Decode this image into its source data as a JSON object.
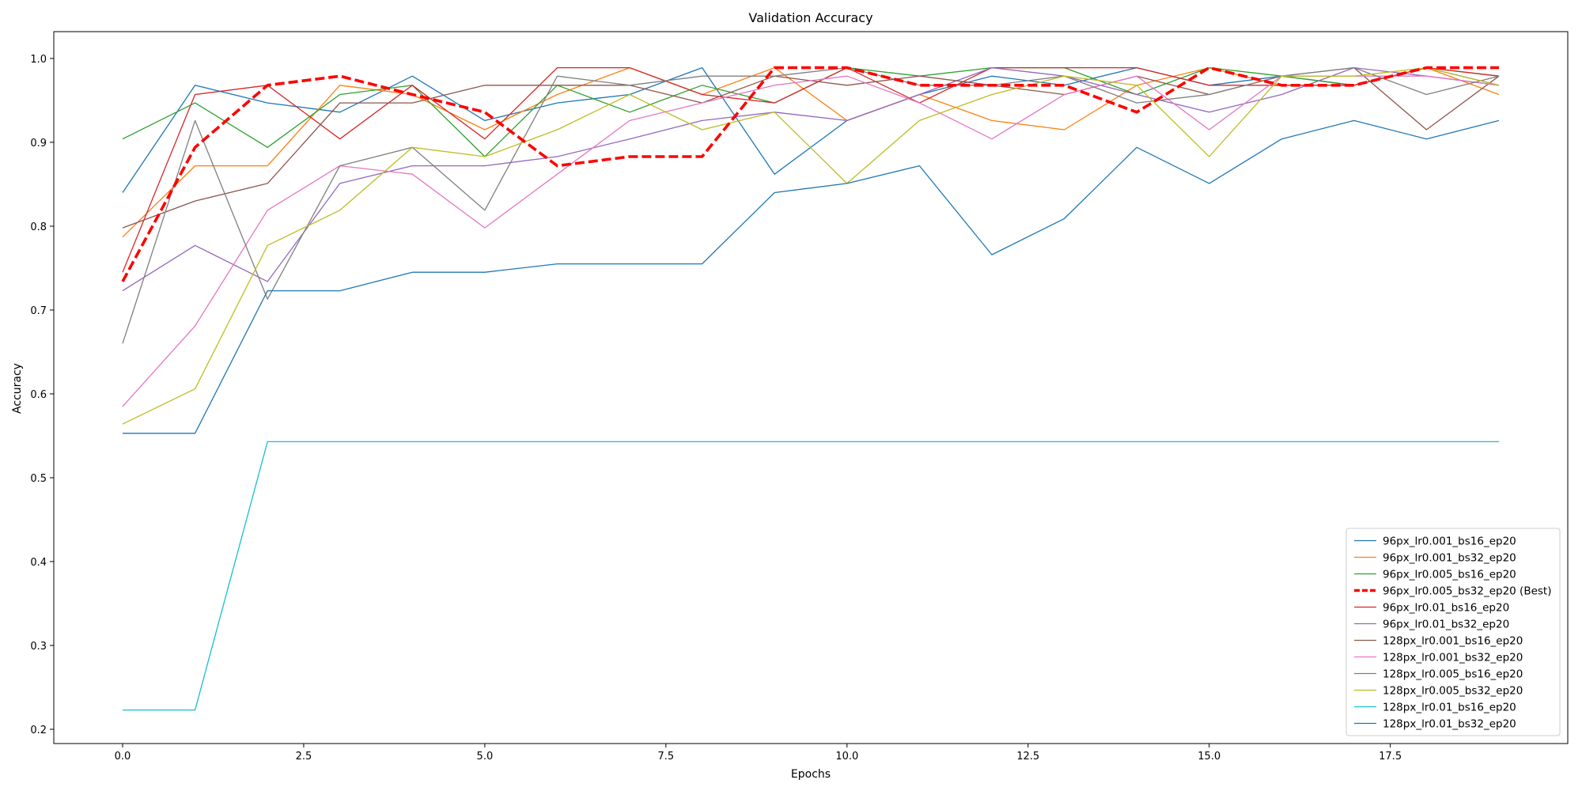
{
  "chart_data": {
    "type": "line",
    "title": "Validation Accuracy",
    "xlabel": "Epochs",
    "ylabel": "Accuracy",
    "xlim": [
      -0.95,
      19.95
    ],
    "ylim": [
      0.183,
      1.032
    ],
    "x_ticks": [
      0.0,
      2.5,
      5.0,
      7.5,
      10.0,
      12.5,
      15.0,
      17.5
    ],
    "x_tick_labels": [
      "0.0",
      "2.5",
      "5.0",
      "7.5",
      "10.0",
      "12.5",
      "15.0",
      "17.5"
    ],
    "y_ticks": [
      0.2,
      0.3,
      0.4,
      0.5,
      0.6,
      0.7,
      0.8,
      0.9,
      1.0
    ],
    "y_tick_labels": [
      "0.2",
      "0.3",
      "0.4",
      "0.5",
      "0.6",
      "0.7",
      "0.8",
      "0.9",
      "1.0"
    ],
    "grid": false,
    "legend_position": "lower-right",
    "x": [
      0,
      1,
      2,
      3,
      4,
      5,
      6,
      7,
      8,
      9,
      10,
      11,
      12,
      13,
      14,
      15,
      16,
      17,
      18,
      19
    ],
    "series": [
      {
        "name": "96px_lr0.001_bs16_ep20",
        "color": "#1f77b4",
        "style": "solid",
        "values": [
          0.84,
          0.968,
          0.947,
          0.936,
          0.979,
          0.926,
          0.947,
          0.957,
          0.989,
          0.862,
          0.926,
          0.957,
          0.979,
          0.968,
          0.989,
          0.968,
          0.979,
          0.968,
          0.989,
          0.968
        ]
      },
      {
        "name": "96px_lr0.001_bs32_ep20",
        "color": "#ff7f0e",
        "style": "solid",
        "values": [
          0.787,
          0.872,
          0.872,
          0.968,
          0.957,
          0.915,
          0.957,
          0.989,
          0.957,
          0.989,
          0.926,
          0.957,
          0.926,
          0.915,
          0.968,
          0.989,
          0.968,
          0.968,
          0.989,
          0.957
        ]
      },
      {
        "name": "96px_lr0.005_bs16_ep20",
        "color": "#2ca02c",
        "style": "solid",
        "values": [
          0.904,
          0.947,
          0.894,
          0.957,
          0.968,
          0.883,
          0.968,
          0.936,
          0.968,
          0.947,
          0.989,
          0.979,
          0.989,
          0.989,
          0.957,
          0.989,
          0.979,
          0.968,
          0.989,
          0.979
        ]
      },
      {
        "name": "96px_lr0.005_bs32_ep20 (Best)",
        "color": "#ff0000",
        "style": "dashed",
        "best": true,
        "values": [
          0.734,
          0.894,
          0.968,
          0.979,
          0.957,
          0.936,
          0.872,
          0.883,
          0.883,
          0.989,
          0.989,
          0.968,
          0.968,
          0.968,
          0.936,
          0.989,
          0.968,
          0.968,
          0.989,
          0.989
        ]
      },
      {
        "name": "96px_lr0.01_bs16_ep20",
        "color": "#d62728",
        "style": "solid",
        "values": [
          0.745,
          0.957,
          0.968,
          0.904,
          0.968,
          0.904,
          0.989,
          0.989,
          0.957,
          0.947,
          0.989,
          0.947,
          0.989,
          0.989,
          0.989,
          0.968,
          0.968,
          0.968,
          0.989,
          0.979
        ]
      },
      {
        "name": "96px_lr0.01_bs32_ep20",
        "color": "#9467bd",
        "style": "solid",
        "values": [
          0.723,
          0.777,
          0.734,
          0.851,
          0.872,
          0.872,
          0.883,
          0.904,
          0.926,
          0.936,
          0.926,
          0.957,
          0.989,
          0.979,
          0.957,
          0.936,
          0.957,
          0.989,
          0.979,
          0.968
        ]
      },
      {
        "name": "128px_lr0.001_bs16_ep20",
        "color": "#8c564b",
        "style": "solid",
        "values": [
          0.798,
          0.83,
          0.851,
          0.947,
          0.947,
          0.968,
          0.968,
          0.968,
          0.947,
          0.979,
          0.968,
          0.979,
          0.968,
          0.957,
          0.979,
          0.957,
          0.979,
          0.989,
          0.915,
          0.979
        ]
      },
      {
        "name": "128px_lr0.001_bs32_ep20",
        "color": "#e377c2",
        "style": "solid",
        "values": [
          0.585,
          0.681,
          0.819,
          0.872,
          0.862,
          0.798,
          0.862,
          0.926,
          0.947,
          0.968,
          0.979,
          0.947,
          0.904,
          0.957,
          0.979,
          0.915,
          0.979,
          0.979,
          0.979,
          0.968
        ]
      },
      {
        "name": "128px_lr0.005_bs16_ep20",
        "color": "#7f7f7f",
        "style": "solid",
        "values": [
          0.66,
          0.926,
          0.713,
          0.872,
          0.894,
          0.819,
          0.979,
          0.968,
          0.979,
          0.979,
          0.989,
          0.968,
          0.968,
          0.979,
          0.947,
          0.957,
          0.979,
          0.989,
          0.957,
          0.979
        ]
      },
      {
        "name": "128px_lr0.005_bs32_ep20",
        "color": "#bcbd22",
        "style": "solid",
        "values": [
          0.564,
          0.606,
          0.777,
          0.819,
          0.894,
          0.883,
          0.915,
          0.957,
          0.915,
          0.936,
          0.851,
          0.926,
          0.957,
          0.979,
          0.968,
          0.883,
          0.979,
          0.979,
          0.989,
          0.968
        ]
      },
      {
        "name": "128px_lr0.01_bs16_ep20",
        "color": "#17becf",
        "style": "solid",
        "values": [
          0.223,
          0.223,
          0.543,
          0.543,
          0.543,
          0.543,
          0.543,
          0.543,
          0.543,
          0.543,
          0.543,
          0.543,
          0.543,
          0.543,
          0.543,
          0.543,
          0.543,
          0.543,
          0.543,
          0.543
        ]
      },
      {
        "name": "128px_lr0.01_bs32_ep20",
        "color": "#1f77b4",
        "style": "solid",
        "values": [
          0.553,
          0.553,
          0.723,
          0.723,
          0.745,
          0.745,
          0.755,
          0.755,
          0.755,
          0.84,
          0.851,
          0.872,
          0.766,
          0.809,
          0.894,
          0.851,
          0.904,
          0.926,
          0.904,
          0.926
        ]
      }
    ]
  }
}
